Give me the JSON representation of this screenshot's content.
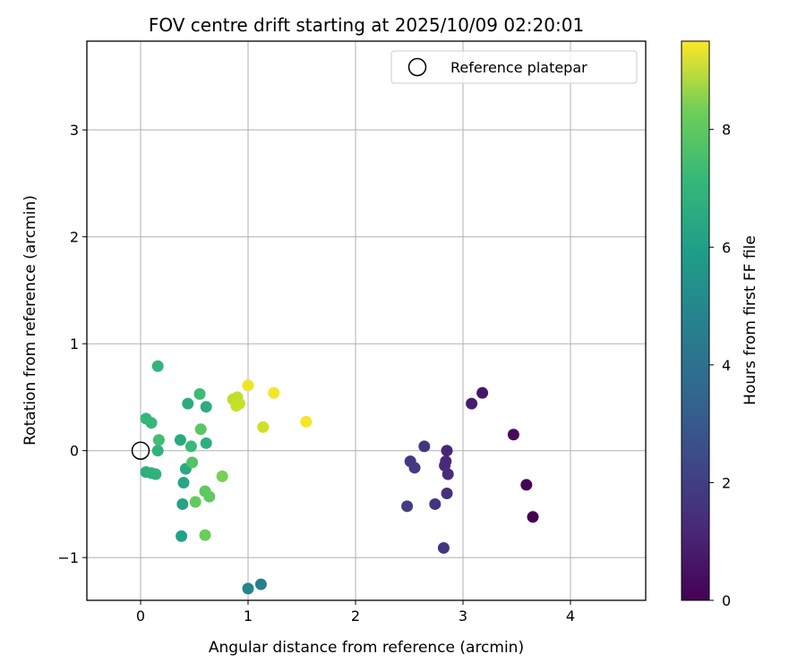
{
  "chart_data": {
    "type": "scatter",
    "title": "FOV centre drift starting at 2025/10/09 02:20:01",
    "xlabel": "Angular distance from reference (arcmin)",
    "ylabel": "Rotation from reference (arcmin)",
    "xlim": [
      -0.5,
      4.7
    ],
    "ylim": [
      -1.4,
      3.83
    ],
    "xticks": [
      0,
      1,
      2,
      3,
      4
    ],
    "yticks": [
      -1,
      0,
      1,
      2,
      3
    ],
    "xtick_labels": [
      "0",
      "1",
      "2",
      "3",
      "4"
    ],
    "ytick_labels": [
      "−1",
      "0",
      "1",
      "2",
      "3"
    ],
    "grid": true,
    "legend": {
      "position": "top-right",
      "entries": [
        {
          "label": "Reference platepar",
          "marker": "open-circle"
        }
      ]
    },
    "reference_point": {
      "x": 0,
      "y": 0
    },
    "colorbar": {
      "label": "Hours from first FF file",
      "colormap": "viridis",
      "range": [
        0,
        9.5
      ],
      "ticks": [
        0,
        2,
        4,
        6,
        8
      ],
      "tick_labels": [
        "0",
        "2",
        "4",
        "6",
        "8"
      ]
    },
    "points": [
      {
        "x": 3.65,
        "y": -0.62,
        "hours": 0.0
      },
      {
        "x": 3.59,
        "y": -0.32,
        "hours": 0.1
      },
      {
        "x": 3.47,
        "y": 0.15,
        "hours": 0.2
      },
      {
        "x": 3.18,
        "y": 0.54,
        "hours": 0.6
      },
      {
        "x": 3.08,
        "y": 0.44,
        "hours": 0.75
      },
      {
        "x": 2.85,
        "y": 0.0,
        "hours": 1.0
      },
      {
        "x": 2.84,
        "y": -0.1,
        "hours": 1.1
      },
      {
        "x": 2.83,
        "y": -0.14,
        "hours": 1.15
      },
      {
        "x": 2.86,
        "y": -0.22,
        "hours": 1.2
      },
      {
        "x": 2.85,
        "y": -0.4,
        "hours": 1.3
      },
      {
        "x": 2.74,
        "y": -0.5,
        "hours": 1.4
      },
      {
        "x": 2.82,
        "y": -0.91,
        "hours": 1.5
      },
      {
        "x": 2.64,
        "y": 0.04,
        "hours": 1.55
      },
      {
        "x": 2.51,
        "y": -0.1,
        "hours": 1.6
      },
      {
        "x": 2.55,
        "y": -0.16,
        "hours": 1.65
      },
      {
        "x": 2.48,
        "y": -0.52,
        "hours": 1.7
      },
      {
        "x": 1.12,
        "y": -1.25,
        "hours": 4.1
      },
      {
        "x": 1.0,
        "y": -1.29,
        "hours": 4.3
      },
      {
        "x": 0.38,
        "y": -0.8,
        "hours": 5.4
      },
      {
        "x": 0.39,
        "y": -0.5,
        "hours": 5.5
      },
      {
        "x": 0.4,
        "y": -0.3,
        "hours": 5.6
      },
      {
        "x": 0.42,
        "y": -0.17,
        "hours": 5.7
      },
      {
        "x": 0.37,
        "y": 0.1,
        "hours": 5.8
      },
      {
        "x": 0.44,
        "y": 0.44,
        "hours": 5.85
      },
      {
        "x": 0.61,
        "y": 0.41,
        "hours": 5.9
      },
      {
        "x": 0.61,
        "y": 0.07,
        "hours": 5.95
      },
      {
        "x": 0.05,
        "y": -0.2,
        "hours": 6.0
      },
      {
        "x": 0.1,
        "y": -0.21,
        "hours": 6.05
      },
      {
        "x": 0.14,
        "y": -0.22,
        "hours": 6.1
      },
      {
        "x": 0.16,
        "y": 0.0,
        "hours": 6.15
      },
      {
        "x": 0.16,
        "y": 0.79,
        "hours": 6.2
      },
      {
        "x": 0.05,
        "y": 0.3,
        "hours": 6.3
      },
      {
        "x": 0.1,
        "y": 0.26,
        "hours": 6.35
      },
      {
        "x": 0.47,
        "y": 0.04,
        "hours": 6.4
      },
      {
        "x": 0.55,
        "y": 0.53,
        "hours": 6.5
      },
      {
        "x": 0.17,
        "y": 0.1,
        "hours": 6.55
      },
      {
        "x": 0.48,
        "y": -0.11,
        "hours": 6.9
      },
      {
        "x": 0.56,
        "y": 0.2,
        "hours": 7.0
      },
      {
        "x": 0.6,
        "y": -0.38,
        "hours": 7.1
      },
      {
        "x": 0.64,
        "y": -0.43,
        "hours": 7.15
      },
      {
        "x": 0.51,
        "y": -0.48,
        "hours": 7.2
      },
      {
        "x": 0.6,
        "y": -0.79,
        "hours": 7.3
      },
      {
        "x": 0.76,
        "y": -0.24,
        "hours": 7.5
      },
      {
        "x": 0.86,
        "y": 0.48,
        "hours": 8.5
      },
      {
        "x": 0.9,
        "y": 0.5,
        "hours": 8.6
      },
      {
        "x": 0.92,
        "y": 0.44,
        "hours": 8.65
      },
      {
        "x": 0.89,
        "y": 0.42,
        "hours": 8.7
      },
      {
        "x": 1.14,
        "y": 0.22,
        "hours": 8.8
      },
      {
        "x": 1.0,
        "y": 0.61,
        "hours": 9.3
      },
      {
        "x": 1.24,
        "y": 0.54,
        "hours": 9.35
      },
      {
        "x": 1.54,
        "y": 0.27,
        "hours": 9.4
      }
    ]
  }
}
